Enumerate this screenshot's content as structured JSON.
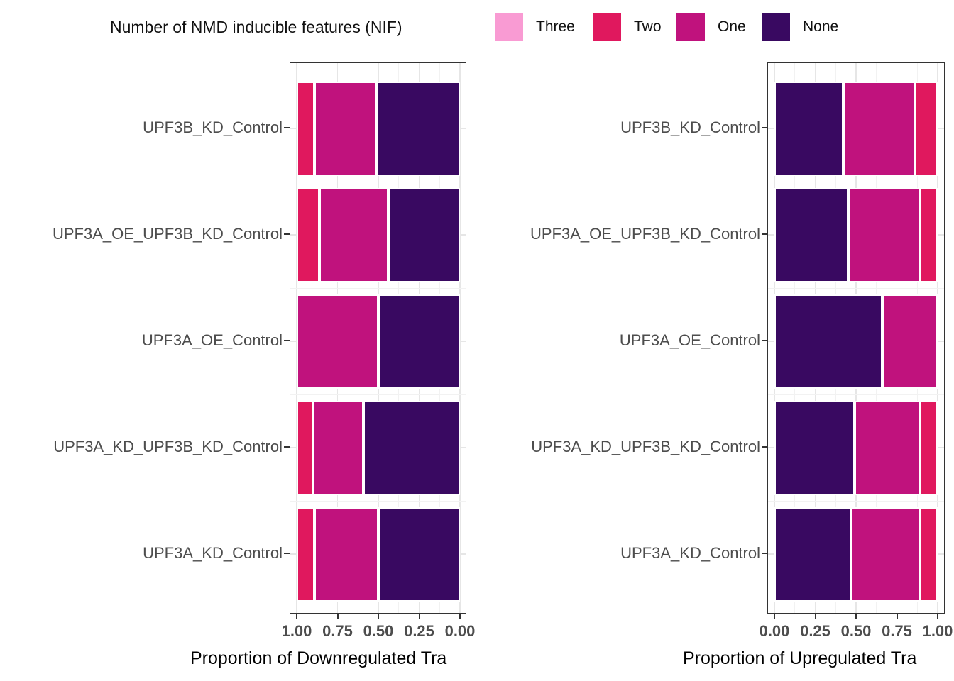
{
  "legend": {
    "title": "Number of NMD inducible features (NIF)",
    "items": [
      {
        "label": "Three",
        "color": "#F99BD3"
      },
      {
        "label": "Two",
        "color": "#E0185E"
      },
      {
        "label": "One",
        "color": "#C0127D"
      },
      {
        "label": "None",
        "color": "#390961"
      }
    ]
  },
  "colors": {
    "Three": "#F99BD3",
    "Two": "#E0185E",
    "One": "#C0127D",
    "None": "#390961",
    "panel_border": "#333333",
    "tick_label": "#4d4d4d",
    "grid_major": "#e6e6e6",
    "grid_minor": "#f2f2f2"
  },
  "chart_data": [
    {
      "type": "bar",
      "orientation": "horizontal",
      "stacked": true,
      "title": "",
      "xlabel": "Proportion of Downregulated Tra",
      "ylabel": "",
      "xlim": [
        0,
        1
      ],
      "x_reversed": true,
      "x_ticks": [
        "1.00",
        "0.75",
        "0.50",
        "0.25",
        "0.00"
      ],
      "grid": true,
      "categories": [
        "UPF3B_KD_Control",
        "UPF3A_OE_UPF3B_KD_Control",
        "UPF3A_OE_Control",
        "UPF3A_KD_UPF3B_KD_Control",
        "UPF3A_KD_Control"
      ],
      "series": [
        {
          "name": "Three",
          "values": [
            0,
            0,
            0,
            0,
            0
          ]
        },
        {
          "name": "Two",
          "values": [
            0.11,
            0.14,
            0,
            0.1,
            0.11
          ]
        },
        {
          "name": "One",
          "values": [
            0.38,
            0.42,
            0.5,
            0.31,
            0.39
          ]
        },
        {
          "name": "None",
          "values": [
            0.51,
            0.44,
            0.5,
            0.59,
            0.5
          ]
        }
      ]
    },
    {
      "type": "bar",
      "orientation": "horizontal",
      "stacked": true,
      "title": "",
      "xlabel": "Proportion of Upregulated Tra",
      "ylabel": "",
      "xlim": [
        0,
        1
      ],
      "x_reversed": false,
      "x_ticks": [
        "0.00",
        "0.25",
        "0.50",
        "0.75",
        "1.00"
      ],
      "grid": true,
      "categories": [
        "UPF3B_KD_Control",
        "UPF3A_OE_UPF3B_KD_Control",
        "UPF3A_OE_Control",
        "UPF3A_KD_UPF3B_KD_Control",
        "UPF3A_KD_Control"
      ],
      "series": [
        {
          "name": "None",
          "values": [
            0.42,
            0.45,
            0.66,
            0.49,
            0.47
          ]
        },
        {
          "name": "One",
          "values": [
            0.44,
            0.44,
            0.34,
            0.4,
            0.42
          ]
        },
        {
          "name": "Two",
          "values": [
            0.14,
            0.11,
            0,
            0.11,
            0.11
          ]
        },
        {
          "name": "Three",
          "values": [
            0,
            0,
            0,
            0,
            0
          ]
        }
      ]
    }
  ]
}
